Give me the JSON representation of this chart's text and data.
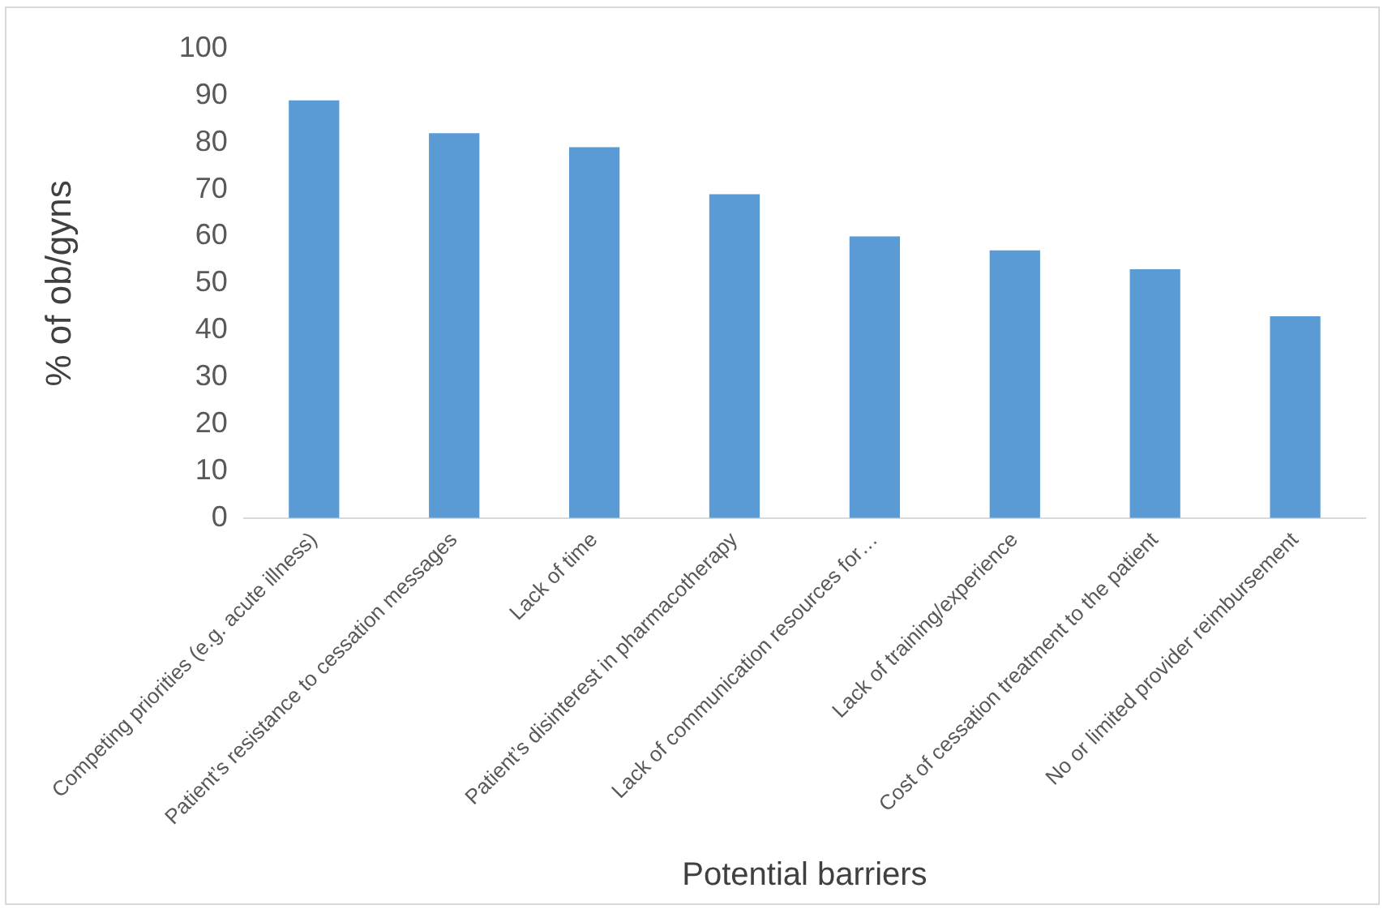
{
  "chart_data": {
    "type": "bar",
    "xlabel": "Potential barriers",
    "ylabel": "% of ob/gyns",
    "categories": [
      "Competing priorities (e.g. acute illness)",
      "Patient’s resistance to cessation messages",
      "Lack of time",
      "Patient’s disinterest in pharmacotherapy",
      "Lack of communication resources for…",
      "Lack of training/experience",
      "Cost of cessation treatment to the patient",
      "No or limited provider reimbursement"
    ],
    "values": [
      89,
      82,
      79,
      69,
      60,
      57,
      53,
      43
    ],
    "color": "#5b9bd5",
    "ylim": [
      0,
      100
    ],
    "yticks": [
      0,
      10,
      20,
      30,
      40,
      50,
      60,
      70,
      80,
      90,
      100
    ],
    "grid": false,
    "legend": false
  }
}
